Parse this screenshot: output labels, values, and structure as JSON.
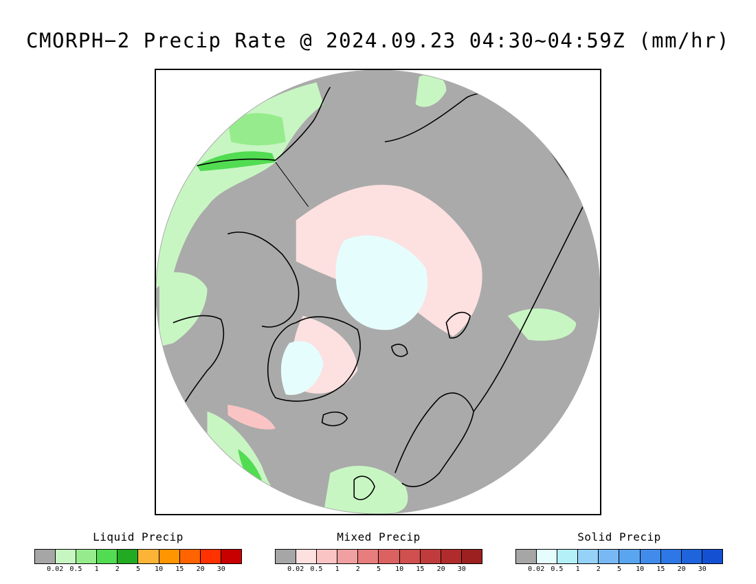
{
  "title": "CMORPH−2 Precip Rate @ 2024.09.23 04:30~04:59Z (mm/hr)",
  "map": {
    "background_color": "#aaaaaa"
  },
  "legends": [
    {
      "title": "Liquid Precip",
      "colors": [
        "#a6a6a6",
        "#c8f6c3",
        "#96ec8d",
        "#52dc52",
        "#22aa22",
        "#fbb437",
        "#ff9500",
        "#ff6400",
        "#ff3200",
        "#c80000"
      ],
      "ticks": [
        "0.02",
        "0.5",
        "1",
        "2",
        "5",
        "10",
        "15",
        "20",
        "30"
      ]
    },
    {
      "title": "Mixed Precip",
      "colors": [
        "#a6a6a6",
        "#fde0e0",
        "#fbc4c4",
        "#f0a0a0",
        "#e87d7d",
        "#dc6161",
        "#d04f4f",
        "#c03c3c",
        "#b02c2c",
        "#9c2020"
      ],
      "ticks": [
        "0.02",
        "0.5",
        "1",
        "2",
        "5",
        "10",
        "15",
        "20",
        "30"
      ]
    },
    {
      "title": "Solid Precip",
      "colors": [
        "#a6a6a6",
        "#e6fdfd",
        "#b4f0f8",
        "#96d2f8",
        "#78b9f5",
        "#5aa5f0",
        "#418ceb",
        "#2d78e6",
        "#1e64dc",
        "#1450d2"
      ],
      "ticks": [
        "0.02",
        "0.5",
        "1",
        "2",
        "5",
        "10",
        "15",
        "20",
        "30"
      ]
    }
  ]
}
